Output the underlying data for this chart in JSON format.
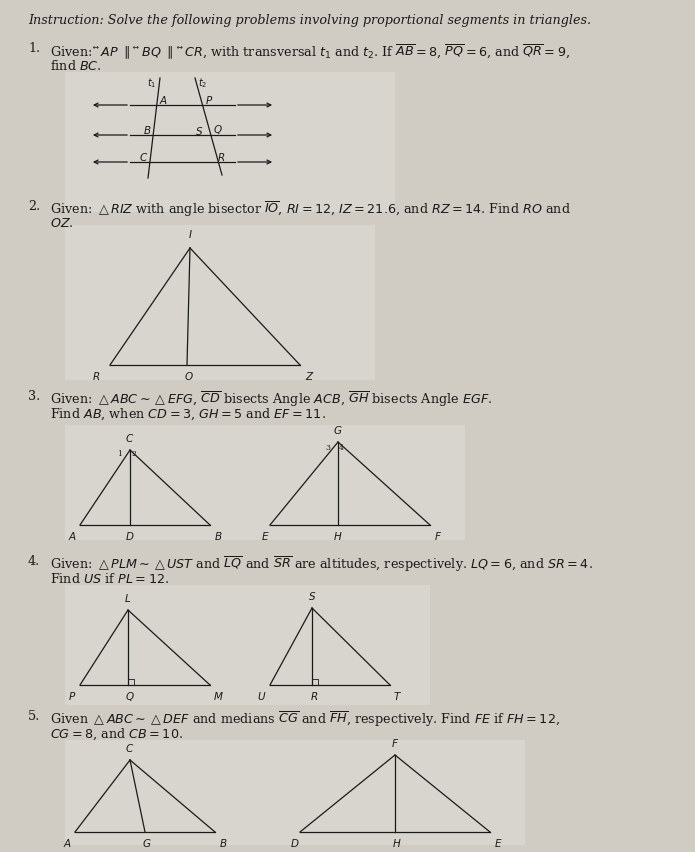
{
  "bg_color": "#d0ccc4",
  "text_color": "#1a1a1a",
  "lw": 0.9,
  "fs_main": 9.2,
  "fs_label": 7.5,
  "fs_tiny": 6.5,
  "instruction": "Instruction: Solve the following problems involving proportional segments in triangles.",
  "p1_line1": "Given: $\\overleftrightarrow{AP}$ $\\parallel$ $\\overleftrightarrow{BQ}$ $\\parallel$ $\\overleftrightarrow{CR}$, with transversal $t_1$ and $t_2$. If $\\overline{AB}=8$, $\\overline{PQ}=6$, and $\\overline{QR}=9$,",
  "p1_line2": "find $BC$.",
  "p2_line1": "Given: $\\triangle RIZ$ with angle bisector $\\overline{IO}$, $RI=12$, $IZ=21.6$, and $RZ=14$. Find $RO$ and",
  "p2_line2": "$OZ$.",
  "p3_line1": "Given: $\\triangle ABC$$\\sim$$\\triangle EFG$, $\\overline{CD}$ bisects Angle $ACB$, $\\overline{GH}$ bisects Angle $EGF$.",
  "p3_line2": "Find $AB$, when $CD=3$, $GH=5$ and $EF=11$.",
  "p4_line1": "Given: $\\triangle PLM$$\\sim$$\\triangle UST$ and $\\overline{LQ}$ and $\\overline{SR}$ are altitudes, respectively. $LQ=6$, and $SR=4$.",
  "p4_line2": "Find $US$ if $PL=12$.",
  "p5_line1": "Given $\\triangle ABC$$\\sim$$\\triangle DEF$ and medians $\\overline{CG}$ and $\\overline{FH}$, respectively. Find $FE$ if $FH=12$,",
  "p5_line2": "$CG=8$, and $CB=10$."
}
